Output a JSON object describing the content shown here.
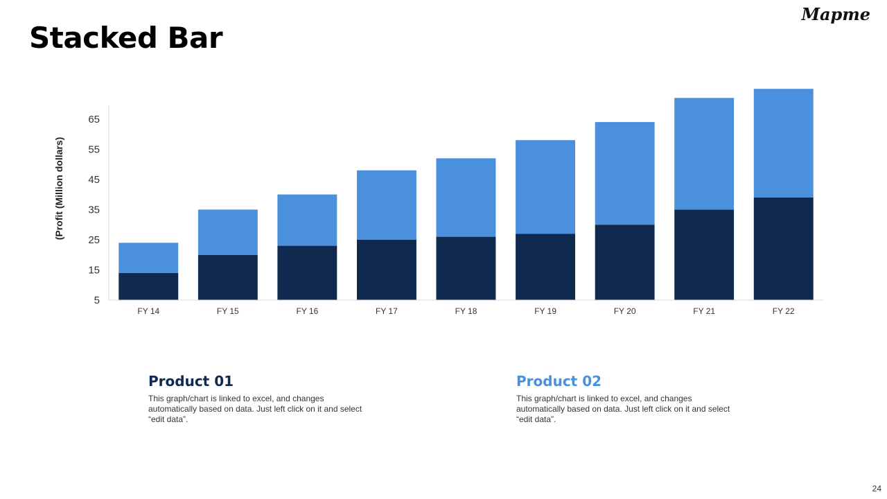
{
  "slide": {
    "title": "Stacked Bar",
    "logo": "Mapme",
    "page_number": "24"
  },
  "legend": [
    {
      "title": "Product 01",
      "color": "#0f2a4e",
      "description": "This graph/chart is linked to excel, and changes automatically based on data. Just left click on it and select “edit data”."
    },
    {
      "title": "Product 02",
      "color": "#4a90dc",
      "description": "This graph/chart is linked to excel, and changes automatically based on data. Just left click on it and select “edit data”."
    }
  ],
  "chart_data": {
    "type": "bar",
    "stacked": true,
    "categories": [
      "FY 14",
      "FY 15",
      "FY 16",
      "FY 17",
      "FY 18",
      "FY 19",
      "FY 20",
      "FY 21",
      "FY 22"
    ],
    "series": [
      {
        "name": "Product 01",
        "color": "#0f2a4e",
        "values": [
          9,
          15,
          18,
          20,
          21,
          22,
          25,
          30,
          34
        ]
      },
      {
        "name": "Product 02",
        "color": "#4a90dc",
        "values": [
          10,
          15,
          17,
          23,
          26,
          31,
          34,
          37,
          36
        ]
      }
    ],
    "ylabel": "(Profit  (Million dollars)",
    "yticks": [
      5,
      15,
      25,
      35,
      45,
      55,
      65
    ],
    "ylim": [
      5,
      70
    ],
    "grid": false
  }
}
